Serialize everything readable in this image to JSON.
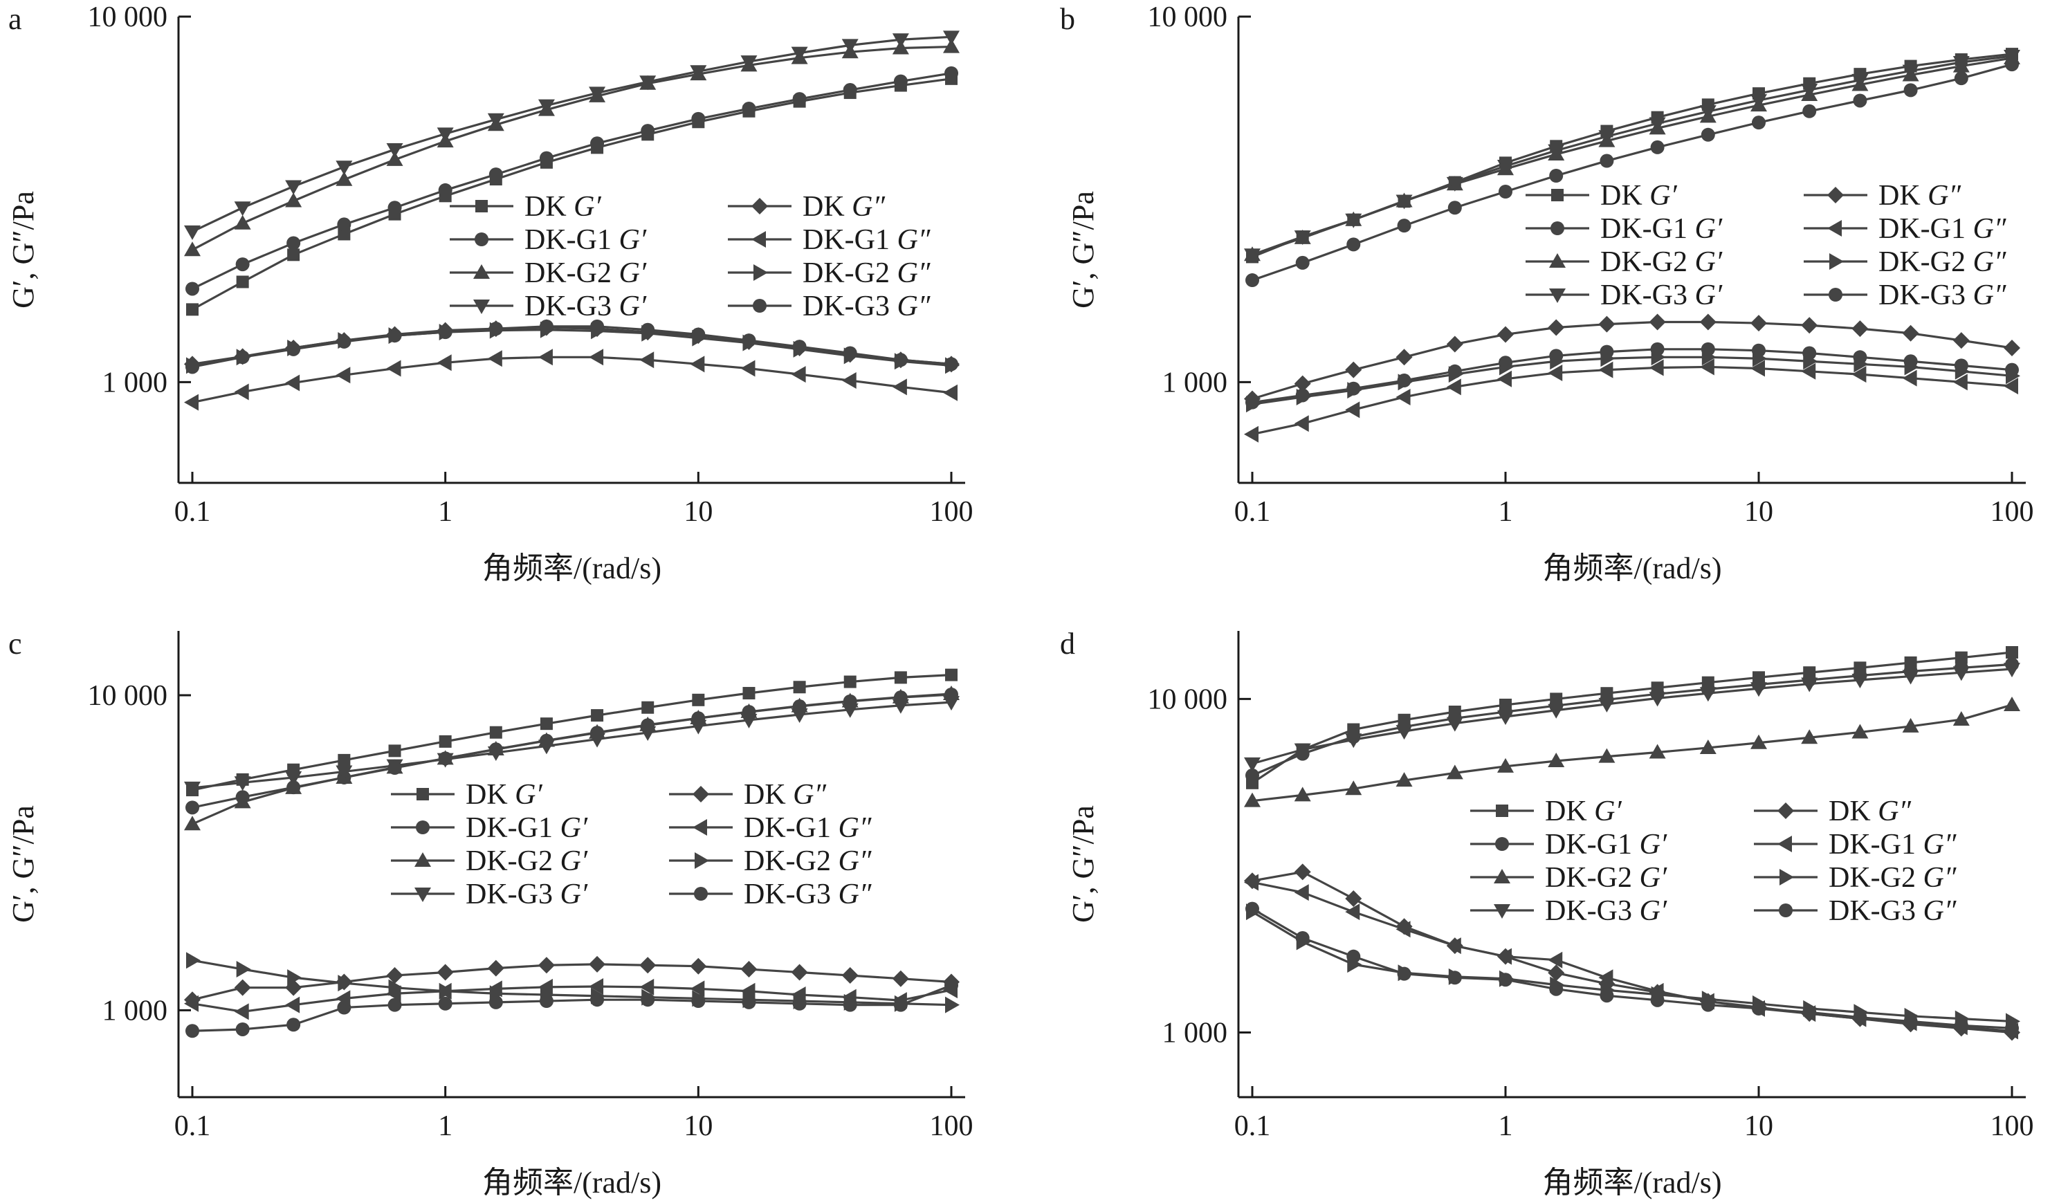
{
  "figure": {
    "x_tick_labels": [
      "0.1",
      "1",
      "10",
      "100"
    ],
    "y_tick_labels": [
      "1 000",
      "10 000"
    ],
    "xlabel": "角频率/(rad/s)",
    "ylabel": "G′, G″/Pa"
  },
  "chart_data": [
    {
      "panel": "a",
      "type": "line",
      "x_scale": "log",
      "y_scale": "log",
      "xlim": [
        0.1,
        100
      ],
      "ylim": [
        530,
        10000
      ],
      "xlabel": "角频率/(rad/s)",
      "ylabel": "G′, G″/Pa",
      "x": [
        0.1,
        0.158,
        0.251,
        0.398,
        0.631,
        1,
        1.585,
        2.512,
        3.981,
        6.31,
        10,
        15.85,
        25.12,
        39.81,
        63.1,
        100
      ],
      "series": [
        {
          "name": "DK G′",
          "marker": "square",
          "values": [
            1580,
            1880,
            2230,
            2540,
            2880,
            3230,
            3590,
            3990,
            4380,
            4760,
            5150,
            5510,
            5860,
            6190,
            6480,
            6760
          ]
        },
        {
          "name": "DK-G1 G′",
          "marker": "circle",
          "values": [
            1800,
            2100,
            2400,
            2700,
            3000,
            3350,
            3700,
            4100,
            4500,
            4870,
            5250,
            5600,
            5950,
            6300,
            6650,
            7000
          ]
        },
        {
          "name": "DK-G2 G′",
          "marker": "triangle-up",
          "values": [
            2300,
            2720,
            3130,
            3580,
            4060,
            4560,
            5060,
            5560,
            6060,
            6560,
            6960,
            7360,
            7710,
            8000,
            8200,
            8270
          ]
        },
        {
          "name": "DK-G3 G′",
          "marker": "triangle-down",
          "values": [
            2580,
            3000,
            3430,
            3880,
            4330,
            4780,
            5230,
            5710,
            6180,
            6630,
            7080,
            7530,
            7950,
            8350,
            8650,
            8800
          ]
        },
        {
          "name": "DK G″",
          "marker": "diamond",
          "values": [
            1120,
            1175,
            1240,
            1300,
            1350,
            1385,
            1400,
            1410,
            1400,
            1370,
            1340,
            1290,
            1240,
            1190,
            1150,
            1120
          ]
        },
        {
          "name": "DK-G1 G″",
          "marker": "triangle-left",
          "values": [
            880,
            940,
            995,
            1045,
            1090,
            1130,
            1160,
            1170,
            1170,
            1150,
            1120,
            1090,
            1050,
            1010,
            970,
            935
          ]
        },
        {
          "name": "DK-G2 G″",
          "marker": "triangle-right",
          "values": [
            1110,
            1170,
            1240,
            1300,
            1340,
            1370,
            1385,
            1390,
            1380,
            1360,
            1320,
            1280,
            1230,
            1180,
            1140,
            1110
          ]
        },
        {
          "name": "DK-G3 G″",
          "marker": "circle",
          "values": [
            1100,
            1170,
            1230,
            1290,
            1340,
            1370,
            1400,
            1420,
            1420,
            1390,
            1350,
            1300,
            1250,
            1200,
            1150,
            1120
          ]
        }
      ]
    },
    {
      "panel": "b",
      "type": "line",
      "x_scale": "log",
      "y_scale": "log",
      "xlim": [
        0.1,
        100
      ],
      "ylim": [
        530,
        10000
      ],
      "xlabel": "角频率/(rad/s)",
      "ylabel": "G′, G″/Pa",
      "x": [
        0.1,
        0.158,
        0.251,
        0.398,
        0.631,
        1,
        1.585,
        2.512,
        3.981,
        6.31,
        10,
        15.85,
        25.12,
        39.81,
        63.1,
        100
      ],
      "series": [
        {
          "name": "DK G′",
          "marker": "square",
          "values": [
            2200,
            2500,
            2780,
            3120,
            3520,
            3980,
            4420,
            4860,
            5300,
            5740,
            6160,
            6560,
            6960,
            7320,
            7630,
            7900
          ]
        },
        {
          "name": "DK-G1 G′",
          "marker": "circle",
          "values": [
            1900,
            2120,
            2380,
            2680,
            3000,
            3320,
            3670,
            4030,
            4390,
            4750,
            5130,
            5510,
            5890,
            6290,
            6780,
            7400
          ]
        },
        {
          "name": "DK-G2 G′",
          "marker": "triangle-up",
          "values": [
            2230,
            2480,
            2780,
            3130,
            3480,
            3830,
            4200,
            4570,
            4950,
            5330,
            5720,
            6110,
            6510,
            6920,
            7320,
            7700
          ]
        },
        {
          "name": "DK-G3 G′",
          "marker": "triangle-down",
          "values": [
            2230,
            2500,
            2780,
            3130,
            3500,
            3900,
            4300,
            4700,
            5100,
            5500,
            5900,
            6300,
            6700,
            7100,
            7500,
            7800
          ]
        },
        {
          "name": "DK G″",
          "marker": "diamond",
          "values": [
            900,
            990,
            1080,
            1170,
            1270,
            1350,
            1410,
            1440,
            1460,
            1460,
            1450,
            1430,
            1400,
            1360,
            1300,
            1240
          ]
        },
        {
          "name": "DK-G1 G″",
          "marker": "triangle-left",
          "values": [
            720,
            770,
            840,
            910,
            970,
            1020,
            1060,
            1080,
            1095,
            1100,
            1090,
            1070,
            1050,
            1025,
            1000,
            975
          ]
        },
        {
          "name": "DK-G2 G″",
          "marker": "triangle-right",
          "values": [
            870,
            910,
            950,
            1000,
            1050,
            1100,
            1140,
            1160,
            1170,
            1170,
            1160,
            1140,
            1120,
            1100,
            1070,
            1040
          ]
        },
        {
          "name": "DK-G3 G″",
          "marker": "circle",
          "values": [
            880,
            920,
            960,
            1010,
            1070,
            1130,
            1180,
            1210,
            1230,
            1230,
            1220,
            1200,
            1170,
            1140,
            1110,
            1080
          ]
        }
      ]
    },
    {
      "panel": "c",
      "type": "line",
      "x_scale": "log",
      "y_scale": "log",
      "xlim": [
        0.1,
        100
      ],
      "ylim": [
        530,
        16000
      ],
      "xlabel": "角频率/(rad/s)",
      "ylabel": "G′, G″/Pa",
      "x": [
        0.1,
        0.158,
        0.251,
        0.398,
        0.631,
        1,
        1.585,
        2.512,
        3.981,
        6.31,
        10,
        15.85,
        25.12,
        39.81,
        63.1,
        100
      ],
      "series": [
        {
          "name": "DK G′",
          "marker": "square",
          "values": [
            5000,
            5400,
            5800,
            6220,
            6660,
            7130,
            7620,
            8120,
            8630,
            9140,
            9660,
            10150,
            10610,
            11030,
            11380,
            11600
          ]
        },
        {
          "name": "DK-G1 G′",
          "marker": "circle",
          "values": [
            4400,
            4750,
            5100,
            5480,
            5880,
            6300,
            6730,
            7170,
            7600,
            8030,
            8450,
            8850,
            9220,
            9560,
            9840,
            10050
          ]
        },
        {
          "name": "DK-G2 G′",
          "marker": "triangle-up",
          "values": [
            3900,
            4580,
            5080,
            5480,
            5900,
            6300,
            6740,
            7180,
            7620,
            8050,
            8460,
            8860,
            9240,
            9580,
            9860,
            10100
          ]
        },
        {
          "name": "DK-G3 G′",
          "marker": "triangle-down",
          "values": [
            5080,
            5280,
            5480,
            5720,
            5980,
            6260,
            6570,
            6900,
            7250,
            7610,
            7980,
            8340,
            8680,
            9000,
            9280,
            9500
          ]
        },
        {
          "name": "DK G″",
          "marker": "diamond",
          "values": [
            1080,
            1180,
            1180,
            1230,
            1290,
            1320,
            1360,
            1390,
            1400,
            1390,
            1380,
            1350,
            1320,
            1290,
            1260,
            1230
          ]
        },
        {
          "name": "DK-G1 G″",
          "marker": "triangle-left",
          "values": [
            1050,
            990,
            1040,
            1090,
            1130,
            1150,
            1170,
            1185,
            1190,
            1185,
            1170,
            1150,
            1120,
            1100,
            1075,
            1160
          ]
        },
        {
          "name": "DK-G2 G″",
          "marker": "triangle-right",
          "values": [
            1440,
            1350,
            1270,
            1220,
            1180,
            1150,
            1130,
            1120,
            1110,
            1100,
            1090,
            1080,
            1070,
            1060,
            1050,
            1040
          ]
        },
        {
          "name": "DK-G3 G″",
          "marker": "circle",
          "values": [
            860,
            870,
            900,
            1020,
            1040,
            1050,
            1060,
            1070,
            1080,
            1080,
            1070,
            1060,
            1050,
            1040,
            1040,
            1200
          ]
        }
      ]
    },
    {
      "panel": "d",
      "type": "line",
      "x_scale": "log",
      "y_scale": "log",
      "xlim": [
        0.1,
        100
      ],
      "ylim": [
        640,
        16000
      ],
      "xlabel": "角频率/(rad/s)",
      "ylabel": "G′, G″/Pa",
      "x": [
        0.1,
        0.158,
        0.251,
        0.398,
        0.631,
        1,
        1.585,
        2.512,
        3.981,
        6.31,
        10,
        15.85,
        25.12,
        39.81,
        63.1,
        100
      ],
      "series": [
        {
          "name": "DK G′",
          "marker": "square",
          "values": [
            5600,
            7050,
            8100,
            8650,
            9150,
            9600,
            10000,
            10400,
            10800,
            11200,
            11600,
            12000,
            12400,
            12850,
            13300,
            13800
          ]
        },
        {
          "name": "DK-G1 G′",
          "marker": "circle",
          "values": [
            5900,
            6850,
            7700,
            8250,
            8750,
            9150,
            9550,
            9950,
            10350,
            10700,
            11050,
            11400,
            11750,
            12100,
            12400,
            12700
          ]
        },
        {
          "name": "DK-G2 G′",
          "marker": "triangle-up",
          "values": [
            4950,
            5150,
            5380,
            5700,
            6000,
            6280,
            6520,
            6720,
            6920,
            7140,
            7390,
            7660,
            7950,
            8280,
            8680,
            9600
          ]
        },
        {
          "name": "DK-G3 G′",
          "marker": "triangle-down",
          "values": [
            6400,
            7050,
            7550,
            8000,
            8450,
            8850,
            9250,
            9650,
            10050,
            10400,
            10750,
            11100,
            11400,
            11700,
            12000,
            12300
          ]
        },
        {
          "name": "DK G″",
          "marker": "diamond",
          "values": [
            2850,
            3030,
            2520,
            2080,
            1820,
            1690,
            1510,
            1400,
            1320,
            1240,
            1190,
            1140,
            1100,
            1060,
            1030,
            1000
          ]
        },
        {
          "name": "DK-G1 G″",
          "marker": "triangle-left",
          "values": [
            2820,
            2630,
            2300,
            2040,
            1820,
            1690,
            1650,
            1460,
            1330,
            1240,
            1180,
            1140,
            1100,
            1070,
            1040,
            1010
          ]
        },
        {
          "name": "DK-G2 G″",
          "marker": "triangle-right",
          "values": [
            2300,
            1870,
            1600,
            1510,
            1470,
            1450,
            1390,
            1340,
            1300,
            1260,
            1220,
            1180,
            1150,
            1120,
            1100,
            1080
          ]
        },
        {
          "name": "DK-G3 G″",
          "marker": "circle",
          "values": [
            2350,
            1920,
            1690,
            1500,
            1460,
            1440,
            1350,
            1290,
            1250,
            1210,
            1180,
            1150,
            1110,
            1080,
            1050,
            1030
          ]
        }
      ]
    }
  ]
}
